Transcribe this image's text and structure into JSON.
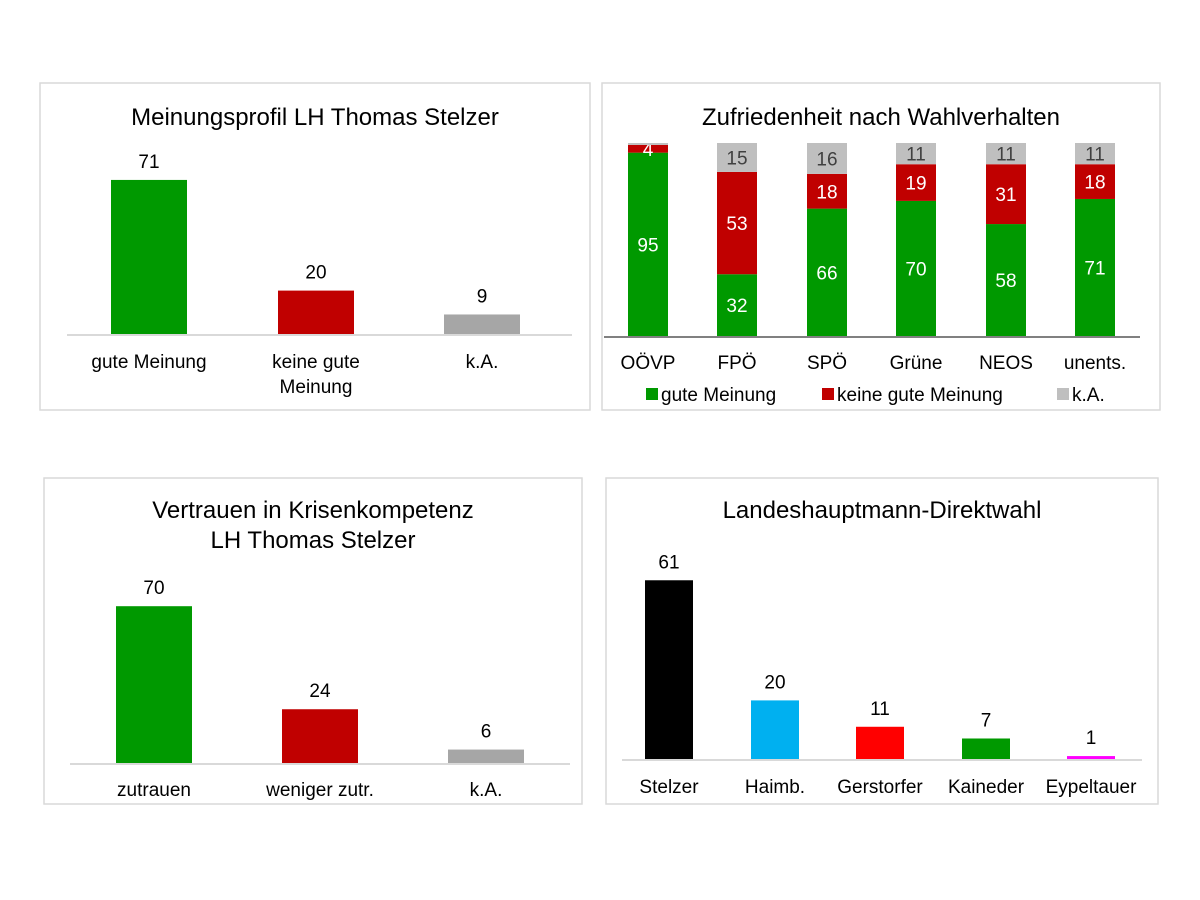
{
  "colors": {
    "green": "#009900",
    "red": "#c00000",
    "gray": "#a6a6a6",
    "lightgray": "#bfbfbf",
    "black": "#000000",
    "blue": "#00b0f0",
    "brightred": "#ff0000",
    "magenta": "#ff00ff"
  },
  "chart_data": [
    {
      "type": "bar",
      "title": "Meinungsprofil LH Thomas Stelzer",
      "categories": [
        [
          "gute Meinung"
        ],
        [
          "keine gute",
          "Meinung"
        ],
        [
          "k.A."
        ]
      ],
      "values": [
        71,
        20,
        9
      ],
      "colors": [
        "#009900",
        "#c00000",
        "#a6a6a6"
      ]
    },
    {
      "type": "bar",
      "stacked": true,
      "title": "Zufriedenheit nach Wahlverhalten",
      "categories": [
        "OÖVP",
        "FPÖ",
        "SPÖ",
        "Grüne",
        "NEOS",
        "unents."
      ],
      "series": [
        {
          "name": "gute Meinung",
          "color": "#009900",
          "values": [
            95,
            32,
            66,
            70,
            58,
            71
          ]
        },
        {
          "name": "keine gute Meinung",
          "color": "#c00000",
          "values": [
            4,
            53,
            18,
            19,
            31,
            18
          ]
        },
        {
          "name": "k.A.",
          "color": "#bfbfbf",
          "values": [
            1,
            15,
            16,
            11,
            11,
            11
          ]
        }
      ],
      "legend": "bottom"
    },
    {
      "type": "bar",
      "title": "Vertrauen in Krisenkompetenz",
      "subtitle": "LH Thomas Stelzer",
      "categories": [
        [
          "zutrauen"
        ],
        [
          "weniger zutr."
        ],
        [
          "k.A."
        ]
      ],
      "values": [
        70,
        24,
        6
      ],
      "colors": [
        "#009900",
        "#c00000",
        "#a6a6a6"
      ]
    },
    {
      "type": "bar",
      "title": "Landeshauptmann-Direktwahl",
      "categories": [
        [
          "Stelzer"
        ],
        [
          "Haimb."
        ],
        [
          "Gerstorfer"
        ],
        [
          "Kaineder"
        ],
        [
          "Eypeltauer"
        ]
      ],
      "values": [
        61,
        20,
        11,
        7,
        1
      ],
      "colors": [
        "#000000",
        "#00b0f0",
        "#ff0000",
        "#009900",
        "#ff00ff"
      ]
    }
  ]
}
